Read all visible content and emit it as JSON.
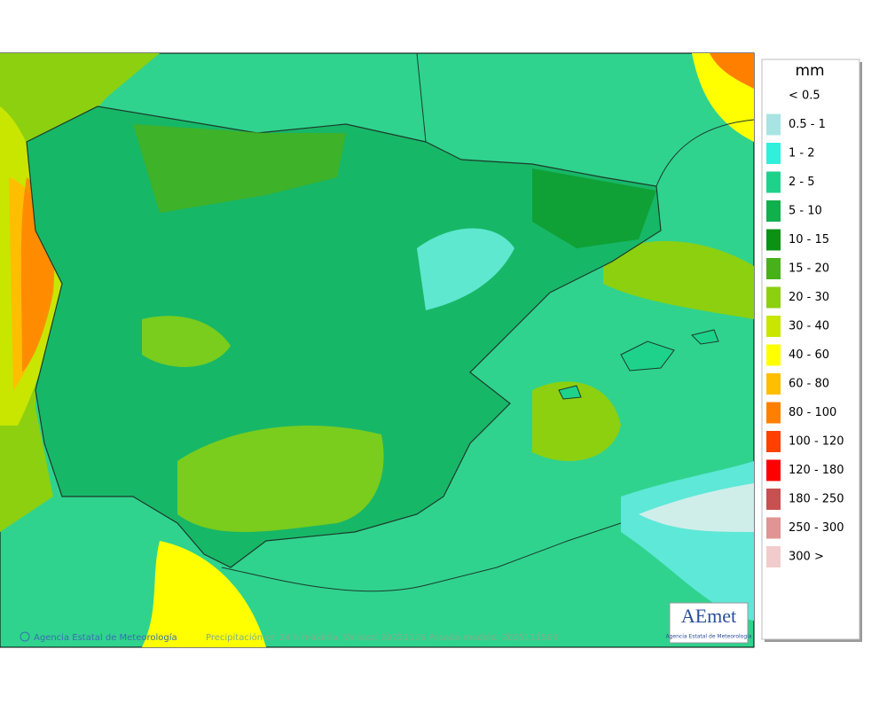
{
  "legend": {
    "unit": "mm",
    "items": [
      {
        "label": "< 0.5",
        "color": "#ffffff"
      },
      {
        "label": "0.5 - 1",
        "color": "#a8e4e4"
      },
      {
        "label": "1 - 2",
        "color": "#30f0dc"
      },
      {
        "label": "2 - 5",
        "color": "#1ed28c"
      },
      {
        "label": "5 - 10",
        "color": "#10b04c"
      },
      {
        "label": "10 - 15",
        "color": "#0a9214"
      },
      {
        "label": "15 - 20",
        "color": "#48b018"
      },
      {
        "label": "20 - 30",
        "color": "#8cd010"
      },
      {
        "label": "30 - 40",
        "color": "#c8e600"
      },
      {
        "label": "40 - 60",
        "color": "#ffff00"
      },
      {
        "label": "60 - 80",
        "color": "#ffbe00"
      },
      {
        "label": "80 - 100",
        "color": "#ff8000"
      },
      {
        "label": "100 - 120",
        "color": "#ff4000"
      },
      {
        "label": "120 - 180",
        "color": "#ff0000"
      },
      {
        "label": "180 - 250",
        "color": "#c85050"
      },
      {
        "label": "250 - 300",
        "color": "#e09494"
      },
      {
        "label": "300 >",
        "color": "#f2cccc"
      }
    ]
  },
  "map": {
    "credit": "Agencia Estatal de Meteorología",
    "caption": "Precipitación en 24 h máxima. Validez: 20251116 Pasada modelo: 2025111500"
  },
  "logo": {
    "name": "AEmet",
    "subtitle": "Agencia Estatal de Meteorología"
  }
}
